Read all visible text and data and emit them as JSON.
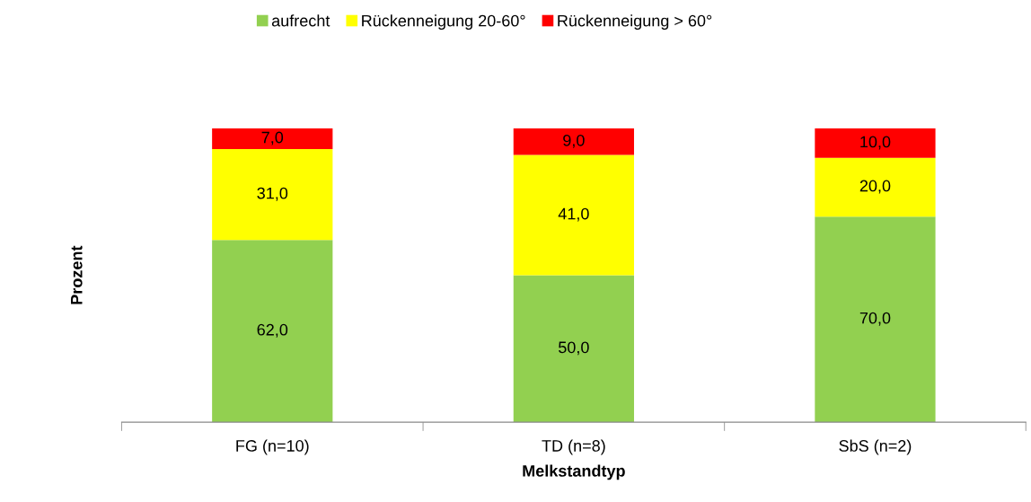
{
  "chart_data": {
    "type": "bar",
    "stacked": true,
    "xlabel": "Melkstandtyp",
    "ylabel": "Prozent",
    "categories": [
      "FG (n=10)",
      "TD (n=8)",
      "SbS (n=2)"
    ],
    "series": [
      {
        "name": "aufrecht",
        "color": "#92d050",
        "values": [
          62.0,
          50.0,
          70.0
        ],
        "value_labels": [
          "62,0",
          "50,0",
          "70,0"
        ]
      },
      {
        "name": "Rückenneigung 20-60°",
        "color": "#ffff00",
        "values": [
          31.0,
          41.0,
          20.0
        ],
        "value_labels": [
          "31,0",
          "41,0",
          "20,0"
        ]
      },
      {
        "name": "Rückenneigung > 60°",
        "color": "#ff0000",
        "values": [
          7.0,
          9.0,
          10.0
        ],
        "value_labels": [
          "7,0",
          "9,0",
          "10,0"
        ]
      }
    ],
    "ylim": [
      0,
      100
    ],
    "tick_labels": "x",
    "legend": "top",
    "grid": false
  }
}
